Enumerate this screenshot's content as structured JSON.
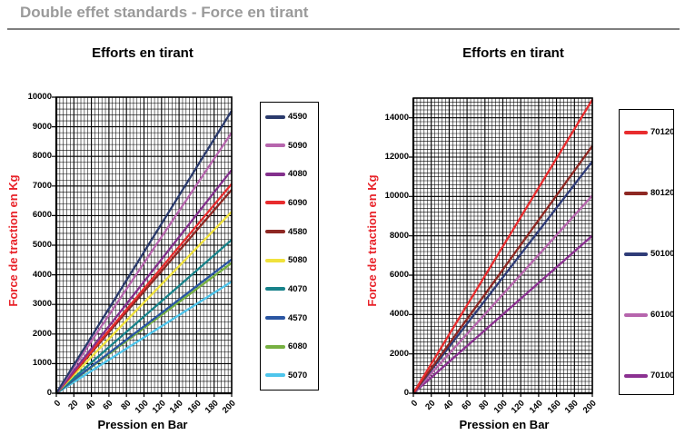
{
  "page": {
    "title": "Double effet standards - Force en tirant"
  },
  "colors": {
    "axis_title_red": "#e8232a",
    "page_title_gray": "#9a9a9a",
    "grid": "#000000"
  },
  "chart_data": [
    {
      "type": "line",
      "title": "Efforts en tirant",
      "xlabel": "Pression en Bar",
      "ylabel": "Force de traction en Kg",
      "xlim": [
        0,
        200
      ],
      "ylim": [
        0,
        10000
      ],
      "x_major_step": 20,
      "x_minor_step": 4,
      "y_major_step": 1000,
      "y_minor_step": 200,
      "grid": "on",
      "legend_position": "right",
      "x_tick_labels": [
        "0",
        "20",
        "40",
        "60",
        "80",
        "100",
        "120",
        "140",
        "160",
        "180",
        "200"
      ],
      "y_tick_labels": [
        "0",
        "1000",
        "2000",
        "3000",
        "4000",
        "5000",
        "6000",
        "7000",
        "8000",
        "9000",
        "10000"
      ],
      "series": [
        {
          "name": "4590",
          "color": "#2a3a6c",
          "x": [
            0,
            200
          ],
          "y": [
            0,
            9540
          ]
        },
        {
          "name": "5090",
          "color": "#b665ad",
          "x": [
            0,
            200
          ],
          "y": [
            0,
            8800
          ]
        },
        {
          "name": "4080",
          "color": "#83308c",
          "x": [
            0,
            200
          ],
          "y": [
            0,
            7540
          ]
        },
        {
          "name": "6090",
          "color": "#e82c2e",
          "x": [
            0,
            200
          ],
          "y": [
            0,
            7070
          ]
        },
        {
          "name": "4580",
          "color": "#8e2823",
          "x": [
            0,
            200
          ],
          "y": [
            0,
            6870
          ]
        },
        {
          "name": "5080",
          "color": "#f0e23c",
          "x": [
            0,
            200
          ],
          "y": [
            0,
            6130
          ]
        },
        {
          "name": "4070",
          "color": "#17828a",
          "x": [
            0,
            200
          ],
          "y": [
            0,
            5180
          ]
        },
        {
          "name": "4570",
          "color": "#2a55a2",
          "x": [
            0,
            200
          ],
          "y": [
            0,
            4520
          ]
        },
        {
          "name": "6080",
          "color": "#76b041",
          "x": [
            0,
            200
          ],
          "y": [
            0,
            4400
          ]
        },
        {
          "name": "5070",
          "color": "#4ec5ec",
          "x": [
            0,
            200
          ],
          "y": [
            0,
            3770
          ]
        }
      ]
    },
    {
      "type": "line",
      "title": "Efforts en tirant",
      "xlabel": "Pression en Bar",
      "ylabel": "Force de traction en Kg",
      "xlim": [
        0,
        200
      ],
      "ylim": [
        0,
        15000
      ],
      "x_major_step": 20,
      "x_minor_step": 4,
      "y_major_step": 2000,
      "y_minor_step": 200,
      "grid": "on",
      "legend_position": "right",
      "x_tick_labels": [
        "0",
        "20",
        "40",
        "60",
        "80",
        "100",
        "120",
        "140",
        "160",
        "180",
        "200"
      ],
      "y_tick_labels": [
        "0",
        "2000",
        "4000",
        "6000",
        "8000",
        "10000",
        "12000",
        "14000"
      ],
      "series": [
        {
          "name": "70120",
          "color": "#e82c2e",
          "x": [
            0,
            200
          ],
          "y": [
            0,
            14920
          ]
        },
        {
          "name": "80120",
          "color": "#8e2823",
          "x": [
            0,
            200
          ],
          "y": [
            0,
            12570
          ]
        },
        {
          "name": "50100",
          "color": "#2f3c78",
          "x": [
            0,
            200
          ],
          "y": [
            0,
            11780
          ]
        },
        {
          "name": "60100",
          "color": "#b665ad",
          "x": [
            0,
            200
          ],
          "y": [
            0,
            10050
          ]
        },
        {
          "name": "70100",
          "color": "#8b3191",
          "x": [
            0,
            200
          ],
          "y": [
            0,
            8010
          ]
        }
      ]
    }
  ]
}
